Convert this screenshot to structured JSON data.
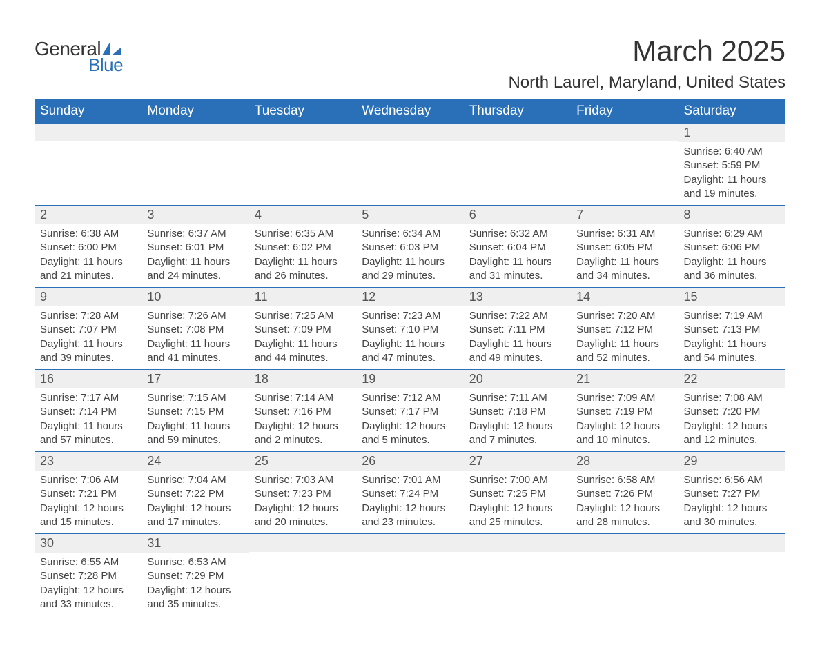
{
  "logo": {
    "text_general": "General",
    "text_blue": "Blue",
    "icon_color": "#2970b8"
  },
  "title": "March 2025",
  "location": "North Laurel, Maryland, United States",
  "colors": {
    "header_bg": "#2970b8",
    "header_text": "#ffffff",
    "day_num_bg": "#efefef",
    "text": "#444444",
    "border": "#2970b8"
  },
  "weekdays": [
    "Sunday",
    "Monday",
    "Tuesday",
    "Wednesday",
    "Thursday",
    "Friday",
    "Saturday"
  ],
  "weeks": [
    [
      null,
      null,
      null,
      null,
      null,
      null,
      {
        "day": "1",
        "sunrise": "Sunrise: 6:40 AM",
        "sunset": "Sunset: 5:59 PM",
        "daylight": "Daylight: 11 hours and 19 minutes."
      }
    ],
    [
      {
        "day": "2",
        "sunrise": "Sunrise: 6:38 AM",
        "sunset": "Sunset: 6:00 PM",
        "daylight": "Daylight: 11 hours and 21 minutes."
      },
      {
        "day": "3",
        "sunrise": "Sunrise: 6:37 AM",
        "sunset": "Sunset: 6:01 PM",
        "daylight": "Daylight: 11 hours and 24 minutes."
      },
      {
        "day": "4",
        "sunrise": "Sunrise: 6:35 AM",
        "sunset": "Sunset: 6:02 PM",
        "daylight": "Daylight: 11 hours and 26 minutes."
      },
      {
        "day": "5",
        "sunrise": "Sunrise: 6:34 AM",
        "sunset": "Sunset: 6:03 PM",
        "daylight": "Daylight: 11 hours and 29 minutes."
      },
      {
        "day": "6",
        "sunrise": "Sunrise: 6:32 AM",
        "sunset": "Sunset: 6:04 PM",
        "daylight": "Daylight: 11 hours and 31 minutes."
      },
      {
        "day": "7",
        "sunrise": "Sunrise: 6:31 AM",
        "sunset": "Sunset: 6:05 PM",
        "daylight": "Daylight: 11 hours and 34 minutes."
      },
      {
        "day": "8",
        "sunrise": "Sunrise: 6:29 AM",
        "sunset": "Sunset: 6:06 PM",
        "daylight": "Daylight: 11 hours and 36 minutes."
      }
    ],
    [
      {
        "day": "9",
        "sunrise": "Sunrise: 7:28 AM",
        "sunset": "Sunset: 7:07 PM",
        "daylight": "Daylight: 11 hours and 39 minutes."
      },
      {
        "day": "10",
        "sunrise": "Sunrise: 7:26 AM",
        "sunset": "Sunset: 7:08 PM",
        "daylight": "Daylight: 11 hours and 41 minutes."
      },
      {
        "day": "11",
        "sunrise": "Sunrise: 7:25 AM",
        "sunset": "Sunset: 7:09 PM",
        "daylight": "Daylight: 11 hours and 44 minutes."
      },
      {
        "day": "12",
        "sunrise": "Sunrise: 7:23 AM",
        "sunset": "Sunset: 7:10 PM",
        "daylight": "Daylight: 11 hours and 47 minutes."
      },
      {
        "day": "13",
        "sunrise": "Sunrise: 7:22 AM",
        "sunset": "Sunset: 7:11 PM",
        "daylight": "Daylight: 11 hours and 49 minutes."
      },
      {
        "day": "14",
        "sunrise": "Sunrise: 7:20 AM",
        "sunset": "Sunset: 7:12 PM",
        "daylight": "Daylight: 11 hours and 52 minutes."
      },
      {
        "day": "15",
        "sunrise": "Sunrise: 7:19 AM",
        "sunset": "Sunset: 7:13 PM",
        "daylight": "Daylight: 11 hours and 54 minutes."
      }
    ],
    [
      {
        "day": "16",
        "sunrise": "Sunrise: 7:17 AM",
        "sunset": "Sunset: 7:14 PM",
        "daylight": "Daylight: 11 hours and 57 minutes."
      },
      {
        "day": "17",
        "sunrise": "Sunrise: 7:15 AM",
        "sunset": "Sunset: 7:15 PM",
        "daylight": "Daylight: 11 hours and 59 minutes."
      },
      {
        "day": "18",
        "sunrise": "Sunrise: 7:14 AM",
        "sunset": "Sunset: 7:16 PM",
        "daylight": "Daylight: 12 hours and 2 minutes."
      },
      {
        "day": "19",
        "sunrise": "Sunrise: 7:12 AM",
        "sunset": "Sunset: 7:17 PM",
        "daylight": "Daylight: 12 hours and 5 minutes."
      },
      {
        "day": "20",
        "sunrise": "Sunrise: 7:11 AM",
        "sunset": "Sunset: 7:18 PM",
        "daylight": "Daylight: 12 hours and 7 minutes."
      },
      {
        "day": "21",
        "sunrise": "Sunrise: 7:09 AM",
        "sunset": "Sunset: 7:19 PM",
        "daylight": "Daylight: 12 hours and 10 minutes."
      },
      {
        "day": "22",
        "sunrise": "Sunrise: 7:08 AM",
        "sunset": "Sunset: 7:20 PM",
        "daylight": "Daylight: 12 hours and 12 minutes."
      }
    ],
    [
      {
        "day": "23",
        "sunrise": "Sunrise: 7:06 AM",
        "sunset": "Sunset: 7:21 PM",
        "daylight": "Daylight: 12 hours and 15 minutes."
      },
      {
        "day": "24",
        "sunrise": "Sunrise: 7:04 AM",
        "sunset": "Sunset: 7:22 PM",
        "daylight": "Daylight: 12 hours and 17 minutes."
      },
      {
        "day": "25",
        "sunrise": "Sunrise: 7:03 AM",
        "sunset": "Sunset: 7:23 PM",
        "daylight": "Daylight: 12 hours and 20 minutes."
      },
      {
        "day": "26",
        "sunrise": "Sunrise: 7:01 AM",
        "sunset": "Sunset: 7:24 PM",
        "daylight": "Daylight: 12 hours and 23 minutes."
      },
      {
        "day": "27",
        "sunrise": "Sunrise: 7:00 AM",
        "sunset": "Sunset: 7:25 PM",
        "daylight": "Daylight: 12 hours and 25 minutes."
      },
      {
        "day": "28",
        "sunrise": "Sunrise: 6:58 AM",
        "sunset": "Sunset: 7:26 PM",
        "daylight": "Daylight: 12 hours and 28 minutes."
      },
      {
        "day": "29",
        "sunrise": "Sunrise: 6:56 AM",
        "sunset": "Sunset: 7:27 PM",
        "daylight": "Daylight: 12 hours and 30 minutes."
      }
    ],
    [
      {
        "day": "30",
        "sunrise": "Sunrise: 6:55 AM",
        "sunset": "Sunset: 7:28 PM",
        "daylight": "Daylight: 12 hours and 33 minutes."
      },
      {
        "day": "31",
        "sunrise": "Sunrise: 6:53 AM",
        "sunset": "Sunset: 7:29 PM",
        "daylight": "Daylight: 12 hours and 35 minutes."
      },
      null,
      null,
      null,
      null,
      null
    ]
  ]
}
